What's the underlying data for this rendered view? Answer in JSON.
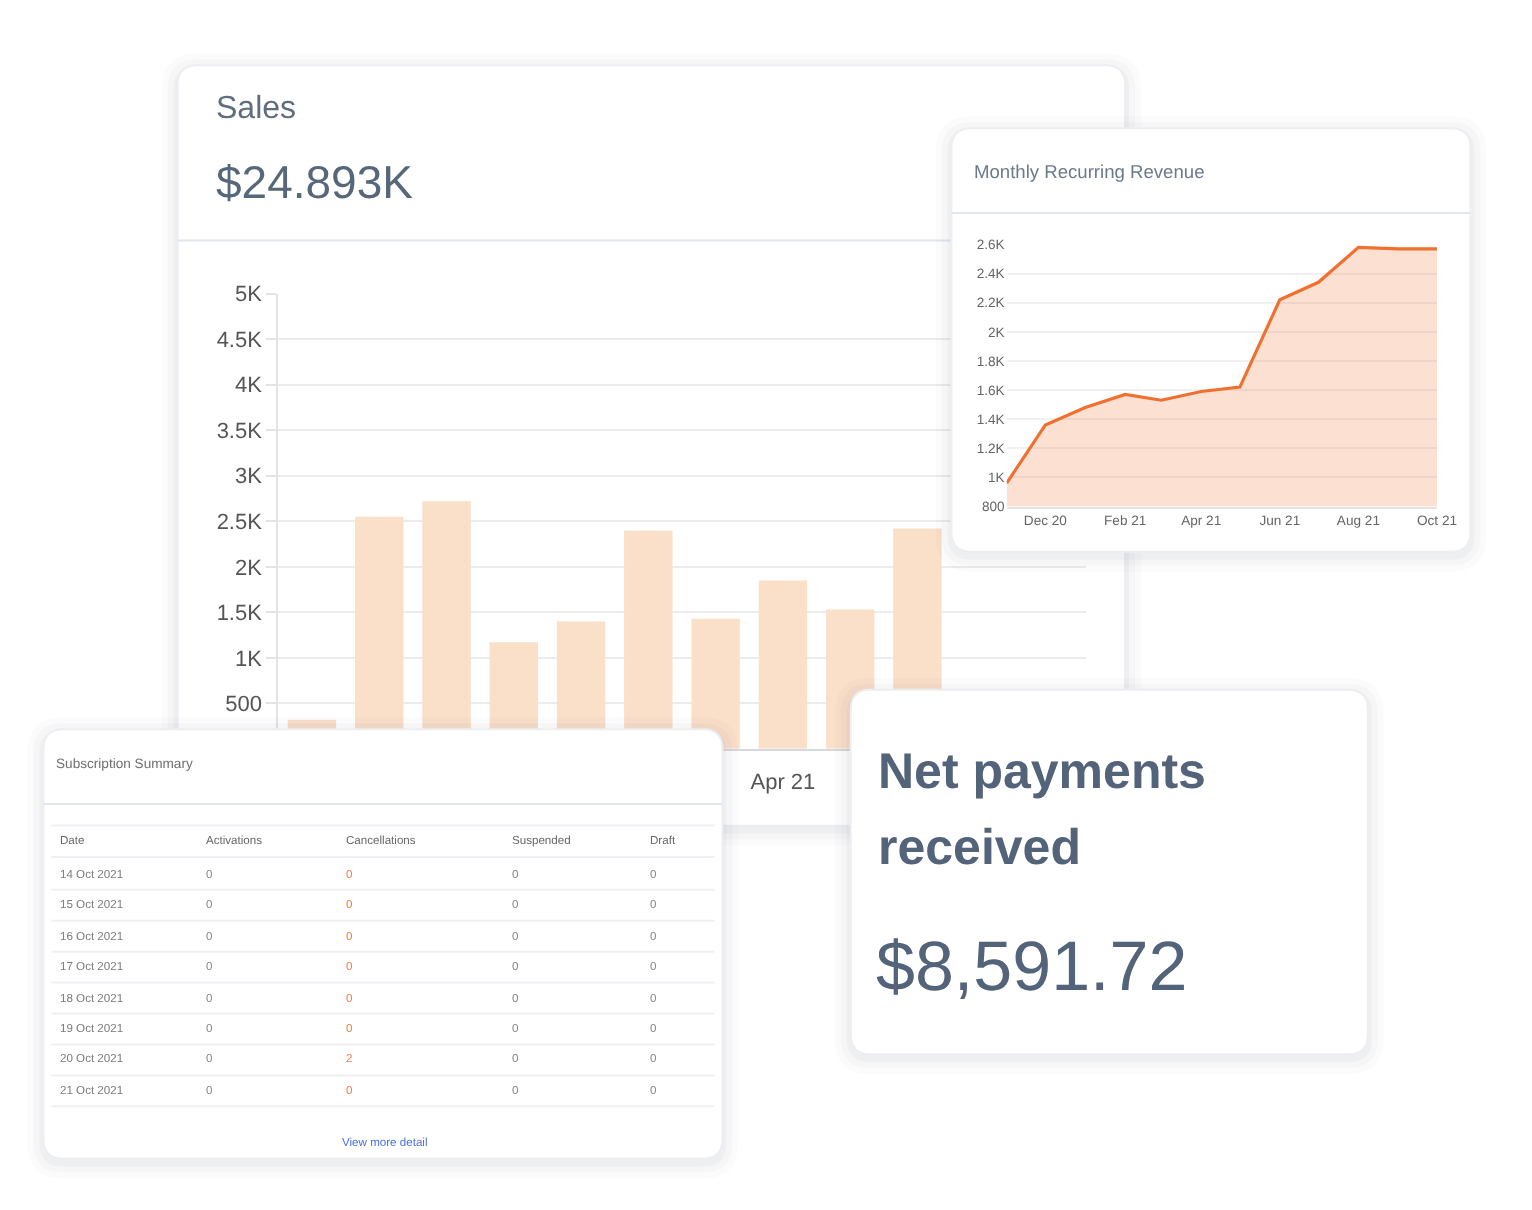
{
  "chart_data": [
    {
      "type": "bar",
      "title": "Sales",
      "subtitle": "$24.893K",
      "categories": [
        null,
        null,
        null,
        null,
        null,
        null,
        null,
        "Apr 21",
        null,
        null,
        null,
        null
      ],
      "values": [
        320,
        2550,
        2720,
        1170,
        1400,
        2400,
        1430,
        1850,
        1530,
        2420,
        null,
        null
      ],
      "color": "#fadfc9",
      "ylim": [
        0,
        5000
      ],
      "yticks": [
        500,
        {
          "value": 1000,
          "label": "1K"
        },
        {
          "value": 1500,
          "label": "1.5K"
        },
        {
          "value": 2000,
          "label": "2K"
        },
        {
          "value": 2500,
          "label": "2.5K"
        },
        {
          "value": 3000,
          "label": "3K"
        },
        {
          "value": 3500,
          "label": "3.5K"
        },
        {
          "value": 4000,
          "label": "4K"
        },
        {
          "value": 4500,
          "label": "4.5K"
        },
        {
          "value": 5000,
          "label": "5K"
        }
      ],
      "grid": "y"
    },
    {
      "type": "area",
      "title": "Monthly Recurring Revenue",
      "x": [
        "2020-11",
        "2020-12",
        "2021-01",
        "2021-02",
        "2021-03",
        "2021-04",
        "2021-05",
        "2021-06",
        "2021-07",
        "2021-08",
        "2021-09",
        "2021-10"
      ],
      "values": [
        960,
        1360,
        1480,
        1570,
        1530,
        1590,
        1620,
        2220,
        2340,
        2580,
        2570,
        2570
      ],
      "color": "#f07030",
      "xlim": [
        "2020-11",
        "2021-10"
      ],
      "xticks": [
        {
          "value": "2020-12",
          "label": "Dec 20"
        },
        {
          "value": "2021-02",
          "label": "Feb 21"
        },
        {
          "value": "2021-04",
          "label": "Apr 21"
        },
        {
          "value": "2021-06",
          "label": "Jun 21"
        },
        {
          "value": "2021-08",
          "label": "Aug 21"
        },
        {
          "value": "2021-10",
          "label": "Oct 21"
        }
      ],
      "ylim": [
        800,
        2600
      ],
      "yticks": [
        800,
        {
          "value": 1000,
          "label": "1K"
        },
        {
          "value": 1200,
          "label": "1.2K"
        },
        {
          "value": 1400,
          "label": "1.4K"
        },
        {
          "value": 1600,
          "label": "1.6K"
        },
        {
          "value": 1800,
          "label": "1.8K"
        },
        {
          "value": 2000,
          "label": "2K"
        },
        {
          "value": 2200,
          "label": "2.2K"
        },
        {
          "value": 2400,
          "label": "2.4K"
        },
        {
          "value": 2600,
          "label": "2.6K"
        }
      ],
      "grid": "y"
    },
    {
      "type": "other",
      "title": "Subscription Summary",
      "annotations": [
        "Date",
        "Activations",
        "Cancellations",
        "Suspended",
        "Draft",
        "14 Oct 2021",
        "0",
        "0",
        "0",
        "0",
        "15 Oct 2021",
        "0",
        "0",
        "0",
        "0",
        "16 Oct 2021",
        "0",
        "0",
        "0",
        "0",
        "17 Oct 2021",
        "0",
        "0",
        "0",
        "0",
        "18 Oct 2021",
        "0",
        "0",
        "0",
        "0",
        "19 Oct 2021",
        "0",
        "0",
        "0",
        "0",
        "20 Oct 2021",
        "0",
        "2",
        "0",
        "0",
        "21 Oct 2021",
        "0",
        "0",
        "0",
        "0",
        "View more detail"
      ]
    },
    {
      "type": "other",
      "title": "Net payments received",
      "annotations": [
        "$8,591.72"
      ]
    }
  ]
}
